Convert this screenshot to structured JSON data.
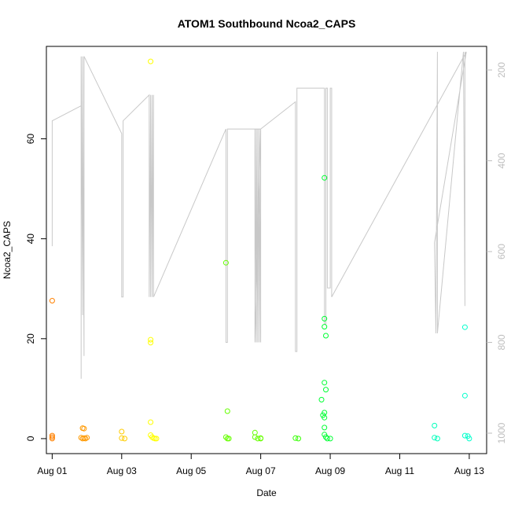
{
  "chart_data": {
    "type": "scatter",
    "title": "ATOM1 Southbound Ncoa2_CAPS",
    "xlabel": "Date",
    "ylabel": "Ncoa2_CAPS",
    "x_ticks": [
      "Aug 01",
      "Aug 03",
      "Aug 05",
      "Aug 07",
      "Aug 09",
      "Aug 11",
      "Aug 13"
    ],
    "y_ticks": [
      0,
      20,
      40,
      60
    ],
    "y_right_ticks": [
      200,
      400,
      600,
      800,
      1000
    ],
    "xlim": [
      "2004-07-31T20:00",
      "2004-08-13T12:00"
    ],
    "ylim": [
      -3,
      78.5
    ],
    "y_right_lim": [
      1045,
      148
    ],
    "grid": false,
    "points": [
      {
        "x": "2004-08-01T00:00",
        "y": 27.6,
        "color": "#ff8000"
      },
      {
        "x": "2004-08-01T00:00",
        "y": 0.6,
        "color": "#ff8000"
      },
      {
        "x": "2004-08-01T00:00",
        "y": 0.3,
        "color": "#ff8000"
      },
      {
        "x": "2004-08-01T00:00",
        "y": 0.0,
        "color": "#ff8000"
      },
      {
        "x": "2004-08-01T21:00",
        "y": 2.1,
        "color": "#ff9900"
      },
      {
        "x": "2004-08-01T22:00",
        "y": 2.0,
        "color": "#ff9900"
      },
      {
        "x": "2004-08-01T20:00",
        "y": 0.2,
        "color": "#ff9900"
      },
      {
        "x": "2004-08-01T21:00",
        "y": 0.0,
        "color": "#ff9900"
      },
      {
        "x": "2004-08-01T22:00",
        "y": 0.1,
        "color": "#ff9900"
      },
      {
        "x": "2004-08-01T23:00",
        "y": 0.0,
        "color": "#ff9900"
      },
      {
        "x": "2004-08-02T00:00",
        "y": 0.2,
        "color": "#ff9900"
      },
      {
        "x": "2004-08-03T00:00",
        "y": 1.4,
        "color": "#ffcc00"
      },
      {
        "x": "2004-08-03T00:00",
        "y": 0.1,
        "color": "#ffcc00"
      },
      {
        "x": "2004-08-03T02:00",
        "y": 0.0,
        "color": "#ffcc00"
      },
      {
        "x": "2004-08-03T20:00",
        "y": 75.5,
        "color": "#ffff00"
      },
      {
        "x": "2004-08-03T20:00",
        "y": 19.8,
        "color": "#ffff00"
      },
      {
        "x": "2004-08-03T20:00",
        "y": 19.2,
        "color": "#ffff00"
      },
      {
        "x": "2004-08-03T20:00",
        "y": 3.3,
        "color": "#ffff00"
      },
      {
        "x": "2004-08-03T20:00",
        "y": 0.7,
        "color": "#ffff00"
      },
      {
        "x": "2004-08-03T21:00",
        "y": 0.3,
        "color": "#ffff00"
      },
      {
        "x": "2004-08-03T22:00",
        "y": 0.1,
        "color": "#ffff00"
      },
      {
        "x": "2004-08-03T23:00",
        "y": 0.0,
        "color": "#ffff00"
      },
      {
        "x": "2004-08-04T00:00",
        "y": 0.0,
        "color": "#ffff00"
      },
      {
        "x": "2004-08-06T00:00",
        "y": 35.2,
        "color": "#66ff00"
      },
      {
        "x": "2004-08-06T01:00",
        "y": 5.5,
        "color": "#66ff00"
      },
      {
        "x": "2004-08-06T00:00",
        "y": 0.3,
        "color": "#66ff00"
      },
      {
        "x": "2004-08-06T01:00",
        "y": 0.0,
        "color": "#66ff00"
      },
      {
        "x": "2004-08-06T02:00",
        "y": 0.0,
        "color": "#66ff00"
      },
      {
        "x": "2004-08-06T20:00",
        "y": 1.2,
        "color": "#66ff00"
      },
      {
        "x": "2004-08-06T20:00",
        "y": 0.3,
        "color": "#66ff00"
      },
      {
        "x": "2004-08-06T22:00",
        "y": 0.0,
        "color": "#66ff00"
      },
      {
        "x": "2004-08-07T00:00",
        "y": 0.1,
        "color": "#66ff00"
      },
      {
        "x": "2004-08-07T00:00",
        "y": 0.0,
        "color": "#66ff00"
      },
      {
        "x": "2004-08-08T00:00",
        "y": 0.1,
        "color": "#33ff00"
      },
      {
        "x": "2004-08-08T02:00",
        "y": 0.0,
        "color": "#33ff00"
      },
      {
        "x": "2004-08-08T20:00",
        "y": 52.2,
        "color": "#00ff33"
      },
      {
        "x": "2004-08-08T20:00",
        "y": 24.0,
        "color": "#00ff33"
      },
      {
        "x": "2004-08-08T20:00",
        "y": 22.4,
        "color": "#00ff33"
      },
      {
        "x": "2004-08-08T21:00",
        "y": 20.6,
        "color": "#00ff33"
      },
      {
        "x": "2004-08-08T20:00",
        "y": 11.2,
        "color": "#00ff33"
      },
      {
        "x": "2004-08-08T21:00",
        "y": 9.8,
        "color": "#00ff33"
      },
      {
        "x": "2004-08-08T18:00",
        "y": 7.8,
        "color": "#00ff33"
      },
      {
        "x": "2004-08-08T20:00",
        "y": 5.2,
        "color": "#00ff33"
      },
      {
        "x": "2004-08-08T19:00",
        "y": 4.7,
        "color": "#00ff33"
      },
      {
        "x": "2004-08-08T20:00",
        "y": 4.2,
        "color": "#00ff33"
      },
      {
        "x": "2004-08-08T20:00",
        "y": 2.2,
        "color": "#00ff33"
      },
      {
        "x": "2004-08-08T20:00",
        "y": 0.8,
        "color": "#00ff33"
      },
      {
        "x": "2004-08-08T21:00",
        "y": 0.3,
        "color": "#00ff33"
      },
      {
        "x": "2004-08-08T22:00",
        "y": 0.0,
        "color": "#00ff33"
      },
      {
        "x": "2004-08-09T00:00",
        "y": 0.0,
        "color": "#00ff33"
      },
      {
        "x": "2004-08-12T00:00",
        "y": 2.6,
        "color": "#00ffbb"
      },
      {
        "x": "2004-08-12T00:00",
        "y": 0.2,
        "color": "#00ffbb"
      },
      {
        "x": "2004-08-12T02:00",
        "y": 0.0,
        "color": "#00ffbb"
      },
      {
        "x": "2004-08-12T21:00",
        "y": 22.3,
        "color": "#00ffcc"
      },
      {
        "x": "2004-08-12T21:00",
        "y": 8.6,
        "color": "#00ffcc"
      },
      {
        "x": "2004-08-12T21:00",
        "y": 0.6,
        "color": "#00ffcc"
      },
      {
        "x": "2004-08-12T23:00",
        "y": 0.5,
        "color": "#00ffcc"
      },
      {
        "x": "2004-08-13T00:00",
        "y": 0.0,
        "color": "#00ffcc"
      }
    ],
    "depth_line": {
      "color": "#c8c8c8",
      "x": [
        "2004-08-01T00:00",
        "2004-08-01T00:00",
        "2004-08-01T00:00",
        "2004-08-01T20:00",
        "2004-08-01T20:00",
        "2004-08-01T20:00",
        "2004-08-01T21:00",
        "2004-08-01T21:00",
        "2004-08-01T22:00",
        "2004-08-01T22:00",
        "2004-08-03T00:00",
        "2004-08-03T00:00",
        "2004-08-03T01:00",
        "2004-08-03T01:00",
        "2004-08-03T19:00",
        "2004-08-03T19:00",
        "2004-08-03T20:00",
        "2004-08-03T20:00",
        "2004-08-03T21:00",
        "2004-08-03T21:00",
        "2004-08-03T22:00",
        "2004-08-03T22:00",
        "2004-08-06T00:00",
        "2004-08-06T00:00",
        "2004-08-06T01:00",
        "2004-08-06T01:00",
        "2004-08-07T00:00",
        "2004-08-06T20:00",
        "2004-08-06T20:00",
        "2004-08-06T21:00",
        "2004-08-06T21:00",
        "2004-08-06T22:00",
        "2004-08-06T22:00",
        "2004-08-06T23:00",
        "2004-08-06T23:00",
        "2004-08-07T00:00",
        "2004-08-07T00:00",
        "2004-08-08T00:00",
        "2004-08-08T00:00",
        "2004-08-08T01:00",
        "2004-08-08T01:00",
        "2004-08-08T20:00",
        "2004-08-08T20:00",
        "2004-08-08T21:00",
        "2004-08-08T21:00",
        "2004-08-08T22:00",
        "2004-08-08T22:00",
        "2004-08-09T00:00",
        "2004-08-09T00:00",
        "2004-08-09T01:00",
        "2004-08-09T01:00",
        "2004-08-12T22:00",
        "2004-08-12T00:00",
        "2004-08-12T00:00",
        "2004-08-12T01:00",
        "2004-08-12T01:00",
        "2004-08-12T02:00",
        "2004-08-12T02:00",
        "2004-08-12T20:00",
        "2004-08-12T21:00",
        "2004-08-12T21:00"
      ],
      "y": [
        588,
        312,
        312,
        279,
        880,
        170,
        740,
        170,
        830,
        170,
        340,
        700,
        700,
        312,
        255,
        700,
        255,
        700,
        255,
        700,
        255,
        700,
        330,
        800,
        800,
        330,
        330,
        800,
        330,
        800,
        330,
        800,
        330,
        800,
        330,
        800,
        330,
        270,
        820,
        820,
        240,
        240,
        760,
        760,
        240,
        240,
        680,
        680,
        240,
        240,
        700,
        160,
        580,
        580,
        780,
        780,
        160,
        780,
        160,
        720,
        160
      ]
    }
  }
}
